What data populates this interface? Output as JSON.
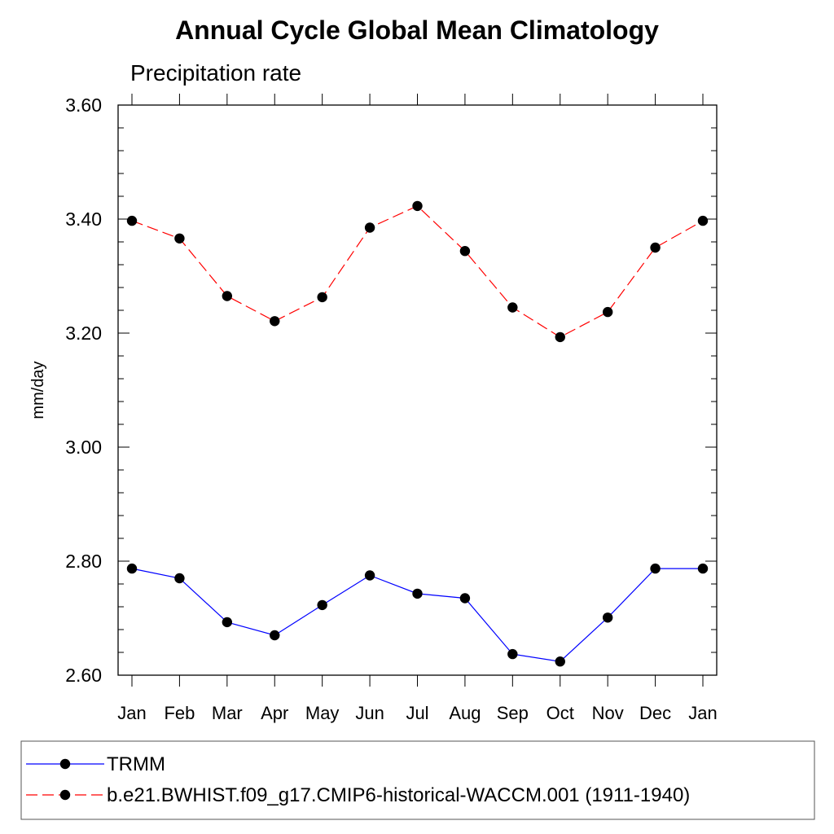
{
  "chart_data": {
    "type": "line",
    "title": "Annual Cycle Global Mean Climatology",
    "subtitle": "Precipitation rate",
    "xlabel": "",
    "ylabel": "mm/day",
    "categories": [
      "Jan",
      "Feb",
      "Mar",
      "Apr",
      "May",
      "Jun",
      "Jul",
      "Aug",
      "Sep",
      "Oct",
      "Nov",
      "Dec",
      "Jan"
    ],
    "ylim": [
      2.6,
      3.6
    ],
    "yticks": [
      "2.60",
      "2.80",
      "3.00",
      "3.20",
      "3.40",
      "3.60"
    ],
    "grid": false,
    "legend_position": "bottom",
    "series": [
      {
        "name": "TRMM",
        "color": "#0000ff",
        "dash": "solid",
        "marker": "filled-circle",
        "values": [
          2.787,
          2.77,
          2.693,
          2.67,
          2.723,
          2.775,
          2.743,
          2.735,
          2.637,
          2.624,
          2.701,
          2.787,
          2.787
        ]
      },
      {
        "name": "b.e21.BWHIST.f09_g17.CMIP6-historical-WACCM.001 (1911-1940)",
        "color": "#ff0000",
        "dash": "dashed",
        "marker": "filled-circle",
        "values": [
          3.397,
          3.366,
          3.265,
          3.221,
          3.263,
          3.385,
          3.423,
          3.344,
          3.245,
          3.193,
          3.237,
          3.35,
          3.397
        ]
      }
    ]
  }
}
